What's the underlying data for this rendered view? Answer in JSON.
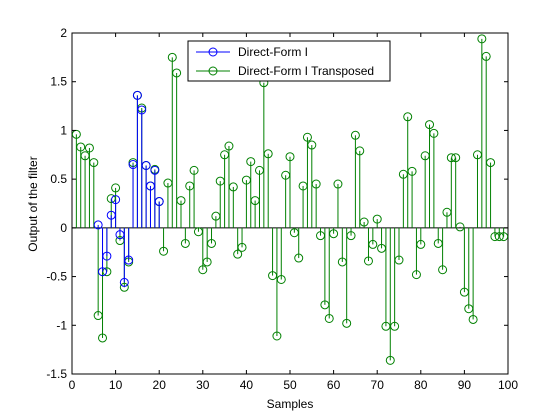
{
  "chart_data": {
    "type": "stem",
    "title": "",
    "xlabel": "Samples",
    "ylabel": "Output of the filter",
    "xlim": [
      0,
      100
    ],
    "ylim": [
      -1.5,
      2
    ],
    "xticks": [
      0,
      10,
      20,
      30,
      40,
      50,
      60,
      70,
      80,
      90,
      100
    ],
    "yticks": [
      -1.5,
      -1,
      -0.5,
      0,
      0.5,
      1,
      1.5,
      2
    ],
    "grid": false,
    "legend_position": "top-center",
    "series": [
      {
        "name": "Direct-Form I",
        "color": "#0000ff",
        "x": [
          6,
          7,
          8,
          9,
          10,
          11,
          12,
          13,
          14,
          15,
          16,
          17,
          18,
          19,
          20
        ],
        "y": [
          0.03,
          -0.45,
          -0.29,
          0.13,
          0.29,
          -0.07,
          -0.56,
          -0.33,
          0.65,
          1.36,
          1.21,
          0.64,
          0.43,
          0.59,
          0.27
        ]
      },
      {
        "name": "Direct-Form I Transposed",
        "color": "#008000",
        "x": [
          1,
          2,
          3,
          4,
          5,
          6,
          7,
          8,
          9,
          10,
          11,
          12,
          13,
          14,
          15,
          16,
          17,
          18,
          19,
          20,
          21,
          22,
          23,
          24,
          25,
          26,
          27,
          28,
          29,
          30,
          31,
          32,
          33,
          34,
          35,
          36,
          37,
          38,
          39,
          40,
          41,
          42,
          43,
          44,
          45,
          46,
          47,
          48,
          49,
          50,
          51,
          52,
          53,
          54,
          55,
          56,
          57,
          58,
          59,
          60,
          61,
          62,
          63,
          64,
          65,
          66,
          67,
          68,
          69,
          70,
          71,
          72,
          73,
          74,
          75,
          76,
          77,
          78,
          79,
          80,
          81,
          82,
          83,
          84,
          85,
          86,
          87,
          88,
          89,
          90,
          91,
          92,
          93,
          94,
          95,
          96,
          97,
          98,
          99
        ],
        "y": [
          0.96,
          0.83,
          0.74,
          0.82,
          0.67,
          -0.9,
          -1.13,
          -0.45,
          0.3,
          0.41,
          -0.13,
          -0.61,
          -0.35,
          0.67,
          1.36,
          1.23,
          0.64,
          0.43,
          0.6,
          0.27,
          -0.24,
          0.46,
          1.75,
          1.59,
          0.28,
          -0.16,
          0.43,
          0.59,
          -0.04,
          -0.43,
          -0.35,
          -0.16,
          0.12,
          0.48,
          0.75,
          0.84,
          0.42,
          -0.27,
          -0.2,
          0.49,
          0.68,
          0.28,
          0.59,
          1.49,
          0.76,
          -0.49,
          -1.11,
          -0.53,
          0.54,
          0.73,
          -0.05,
          -0.31,
          0.43,
          0.93,
          0.85,
          0.45,
          -0.08,
          -0.79,
          -0.93,
          -0.06,
          0.45,
          -0.35,
          -0.98,
          -0.08,
          0.95,
          0.79,
          0.06,
          -0.34,
          -0.17,
          0.09,
          -0.21,
          -1.01,
          -1.36,
          -1.01,
          -0.33,
          0.55,
          1.14,
          0.58,
          -0.48,
          -0.17,
          0.74,
          1.06,
          0.97,
          -0.16,
          -0.43,
          0.16,
          0.72,
          0.72,
          0.01,
          -0.66,
          -0.83,
          -0.94,
          0.75,
          1.94,
          1.76,
          0.67,
          -0.09,
          -0.09,
          -0.09
        ]
      }
    ]
  }
}
